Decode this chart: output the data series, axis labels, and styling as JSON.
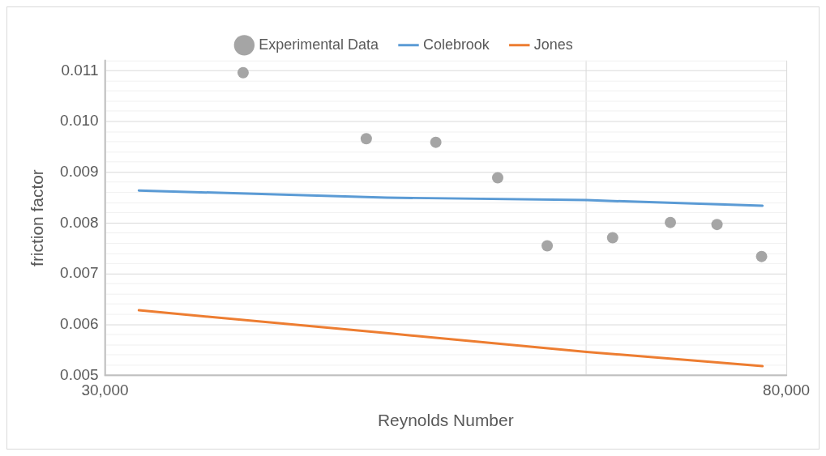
{
  "chart_data": {
    "type": "scatter",
    "xlabel": "Reynolds Number",
    "ylabel": "friction factor",
    "log": "x",
    "xlim": [
      30000,
      80000
    ],
    "xticks": [
      {
        "value": 30000,
        "label": "30,000"
      },
      {
        "value": 60000,
        "label": null
      },
      {
        "value": 80000,
        "label": "80,000"
      }
    ],
    "ylim": [
      0.005,
      0.0112
    ],
    "yticks": [
      0.005,
      {
        "value": 0.0052,
        "label": null
      },
      {
        "value": 0.0054,
        "label": null
      },
      {
        "value": 0.0056,
        "label": null
      },
      {
        "value": 0.0058,
        "label": null
      },
      0.006,
      {
        "value": 0.0062,
        "label": null
      },
      {
        "value": 0.0064,
        "label": null
      },
      {
        "value": 0.0066,
        "label": null
      },
      {
        "value": 0.0068,
        "label": null
      },
      0.007,
      {
        "value": 0.0072,
        "label": null
      },
      {
        "value": 0.0074,
        "label": null
      },
      {
        "value": 0.0076,
        "label": null
      },
      {
        "value": 0.0078,
        "label": null
      },
      0.008,
      {
        "value": 0.0082,
        "label": null
      },
      {
        "value": 0.0084,
        "label": null
      },
      {
        "value": 0.0086,
        "label": null
      },
      {
        "value": 0.0088,
        "label": null
      },
      0.009,
      {
        "value": 0.0092,
        "label": null
      },
      {
        "value": 0.0094,
        "label": null
      },
      {
        "value": 0.0096,
        "label": null
      },
      {
        "value": 0.0098,
        "label": null
      },
      {
        "value": 0.01,
        "label": "0.010"
      },
      {
        "value": 0.0102,
        "label": null
      },
      {
        "value": 0.0104,
        "label": null
      },
      {
        "value": 0.0106,
        "label": null
      },
      {
        "value": 0.0108,
        "label": null
      },
      0.011,
      {
        "value": 0.0112,
        "label": null
      }
    ],
    "grid": true,
    "legend": "top",
    "series": [
      {
        "name": "Experimental Data",
        "marker": "circle",
        "color": "#a5a5a5",
        "x": [
          36600,
          43700,
          48300,
          52800,
          56700,
          62300,
          67700,
          72400,
          77200
        ],
        "values": [
          0.01096,
          0.00966,
          0.00959,
          0.00889,
          0.00755,
          0.00771,
          0.00801,
          0.00797,
          0.00734
        ]
      },
      {
        "name": "Colebrook",
        "type": "line",
        "marker": "none",
        "color": "#5b9bd5",
        "x": [
          31500,
          45000,
          60000,
          77300
        ],
        "values": [
          0.00864,
          0.0085,
          0.00845,
          0.00834
        ]
      },
      {
        "name": "Jones",
        "type": "line",
        "marker": "none",
        "color": "#ed7d31",
        "x": [
          31500,
          45000,
          60000,
          77300
        ],
        "values": [
          0.00628,
          0.00583,
          0.00546,
          0.00518
        ]
      }
    ]
  }
}
